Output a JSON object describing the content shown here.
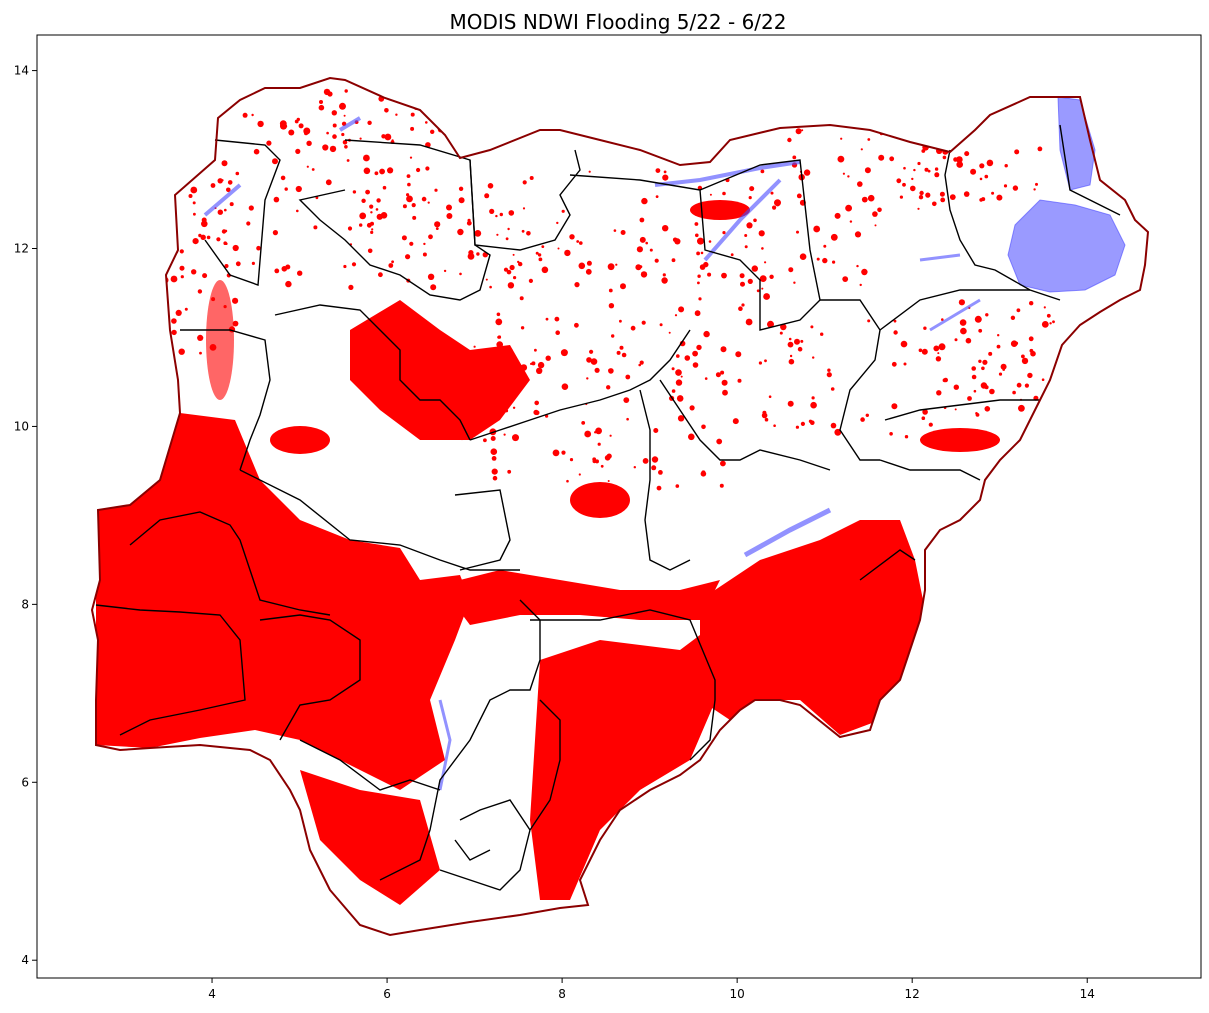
{
  "chart_data": {
    "type": "map",
    "title": "MODIS NDWI Flooding 5/22 - 6/22",
    "xlim": [
      2.0,
      15.3
    ],
    "ylim": [
      3.8,
      14.4
    ],
    "xticks": [
      4,
      6,
      8,
      10,
      12,
      14
    ],
    "yticks": [
      4,
      6,
      8,
      10,
      12,
      14
    ],
    "xtick_labels": [
      "4",
      "6",
      "8",
      "10",
      "12",
      "14"
    ],
    "ytick_labels": [
      "4",
      "6",
      "8",
      "10",
      "12",
      "14"
    ],
    "layers": [
      {
        "layer": "country-outline",
        "color": "#8b0000"
      },
      {
        "layer": "state-boundaries",
        "color": "#000000"
      },
      {
        "layer": "permanent-water",
        "color": "#4a4aff"
      },
      {
        "layer": "ndwi-flooding",
        "color": "#ff0000"
      }
    ],
    "grid": false,
    "legend": "none"
  }
}
